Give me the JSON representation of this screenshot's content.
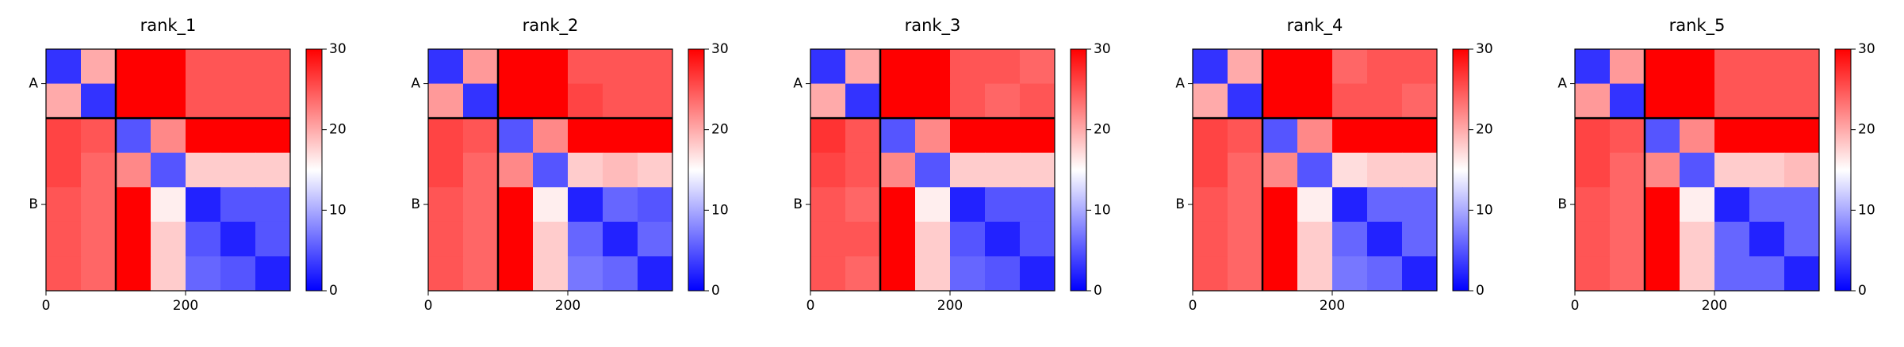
{
  "chart_data": [
    {
      "type": "heatmap",
      "title": "rank_1",
      "colormap": "bwr",
      "x_bins": [
        0,
        50,
        100,
        150,
        200,
        250,
        300,
        350
      ],
      "y_bins": [
        0,
        50,
        100,
        150,
        200,
        250,
        300,
        350
      ],
      "z": [
        [
          3,
          20,
          30,
          30,
          25,
          25,
          25
        ],
        [
          20,
          3,
          30,
          30,
          25,
          25,
          25
        ],
        [
          26,
          25,
          5,
          22,
          30,
          30,
          30
        ],
        [
          26,
          24,
          22,
          5,
          18,
          18,
          18
        ],
        [
          25,
          24,
          30,
          16,
          2,
          5,
          5
        ],
        [
          25,
          24,
          30,
          18,
          5,
          2,
          5
        ],
        [
          25,
          24,
          30,
          18,
          6,
          5,
          2
        ]
      ],
      "xlim": [
        0,
        350
      ],
      "ylim": [
        350,
        0
      ],
      "xticks": [
        0,
        200
      ],
      "yticks": [
        {
          "value": 50,
          "label": "A"
        },
        {
          "value": 225,
          "label": "B"
        }
      ],
      "boundaries": [
        100
      ],
      "clim": [
        0,
        30
      ],
      "colorbar_ticks": [
        0,
        10,
        20,
        30
      ]
    },
    {
      "type": "heatmap",
      "title": "rank_2",
      "colormap": "bwr",
      "x_bins": [
        0,
        50,
        100,
        150,
        200,
        250,
        300,
        350
      ],
      "y_bins": [
        0,
        50,
        100,
        150,
        200,
        250,
        300,
        350
      ],
      "z": [
        [
          3,
          21,
          30,
          30,
          25,
          25,
          25
        ],
        [
          21,
          3,
          30,
          30,
          26,
          25,
          25
        ],
        [
          26,
          25,
          5,
          22,
          30,
          30,
          30
        ],
        [
          26,
          24,
          22,
          5,
          18,
          19,
          18
        ],
        [
          25,
          24,
          30,
          16,
          2,
          6,
          5
        ],
        [
          25,
          24,
          30,
          18,
          6,
          2,
          6
        ],
        [
          25,
          24,
          30,
          18,
          7,
          6,
          2
        ]
      ],
      "xlim": [
        0,
        350
      ],
      "ylim": [
        350,
        0
      ],
      "xticks": [
        0,
        200
      ],
      "yticks": [
        {
          "value": 50,
          "label": "A"
        },
        {
          "value": 225,
          "label": "B"
        }
      ],
      "boundaries": [
        100
      ],
      "clim": [
        0,
        30
      ],
      "colorbar_ticks": [
        0,
        10,
        20,
        30
      ]
    },
    {
      "type": "heatmap",
      "title": "rank_3",
      "colormap": "bwr",
      "x_bins": [
        0,
        50,
        100,
        150,
        200,
        250,
        300,
        350
      ],
      "y_bins": [
        0,
        50,
        100,
        150,
        200,
        250,
        300,
        350
      ],
      "z": [
        [
          3,
          20,
          30,
          30,
          25,
          25,
          24
        ],
        [
          20,
          3,
          30,
          30,
          25,
          24,
          25
        ],
        [
          27,
          25,
          5,
          22,
          30,
          30,
          30
        ],
        [
          26,
          25,
          22,
          5,
          18,
          18,
          18
        ],
        [
          25,
          24,
          30,
          16,
          2,
          5,
          5
        ],
        [
          25,
          25,
          30,
          18,
          5,
          2,
          5
        ],
        [
          25,
          24,
          30,
          18,
          6,
          5,
          2
        ]
      ],
      "xlim": [
        0,
        350
      ],
      "ylim": [
        350,
        0
      ],
      "xticks": [
        0,
        200
      ],
      "yticks": [
        {
          "value": 50,
          "label": "A"
        },
        {
          "value": 225,
          "label": "B"
        }
      ],
      "boundaries": [
        100
      ],
      "clim": [
        0,
        30
      ],
      "colorbar_ticks": [
        0,
        10,
        20,
        30
      ]
    },
    {
      "type": "heatmap",
      "title": "rank_4",
      "colormap": "bwr",
      "x_bins": [
        0,
        50,
        100,
        150,
        200,
        250,
        300,
        350
      ],
      "y_bins": [
        0,
        50,
        100,
        150,
        200,
        250,
        300,
        350
      ],
      "z": [
        [
          3,
          20,
          30,
          30,
          24,
          25,
          25
        ],
        [
          20,
          3,
          30,
          30,
          25,
          25,
          24
        ],
        [
          26,
          25,
          5,
          22,
          30,
          30,
          30
        ],
        [
          26,
          24,
          22,
          5,
          17,
          18,
          18
        ],
        [
          25,
          24,
          30,
          16,
          2,
          6,
          6
        ],
        [
          25,
          24,
          30,
          18,
          6,
          2,
          6
        ],
        [
          25,
          24,
          30,
          18,
          7,
          6,
          2
        ]
      ],
      "xlim": [
        0,
        350
      ],
      "ylim": [
        350,
        0
      ],
      "xticks": [
        0,
        200
      ],
      "yticks": [
        {
          "value": 50,
          "label": "A"
        },
        {
          "value": 225,
          "label": "B"
        }
      ],
      "boundaries": [
        100
      ],
      "clim": [
        0,
        30
      ],
      "colorbar_ticks": [
        0,
        10,
        20,
        30
      ]
    },
    {
      "type": "heatmap",
      "title": "rank_5",
      "colormap": "bwr",
      "x_bins": [
        0,
        50,
        100,
        150,
        200,
        250,
        300,
        350
      ],
      "y_bins": [
        0,
        50,
        100,
        150,
        200,
        250,
        300,
        350
      ],
      "z": [
        [
          3,
          21,
          30,
          30,
          25,
          25,
          25
        ],
        [
          21,
          3,
          30,
          30,
          25,
          25,
          25
        ],
        [
          26,
          25,
          5,
          22,
          30,
          30,
          30
        ],
        [
          26,
          24,
          22,
          5,
          18,
          18,
          19
        ],
        [
          25,
          24,
          30,
          16,
          2,
          6,
          6
        ],
        [
          25,
          24,
          30,
          18,
          6,
          2,
          6
        ],
        [
          25,
          24,
          30,
          18,
          6,
          6,
          2
        ]
      ],
      "xlim": [
        0,
        350
      ],
      "ylim": [
        350,
        0
      ],
      "xticks": [
        0,
        200
      ],
      "yticks": [
        {
          "value": 50,
          "label": "A"
        },
        {
          "value": 225,
          "label": "B"
        }
      ],
      "boundaries": [
        100
      ],
      "clim": [
        0,
        30
      ],
      "colorbar_ticks": [
        0,
        10,
        20,
        30
      ]
    }
  ]
}
